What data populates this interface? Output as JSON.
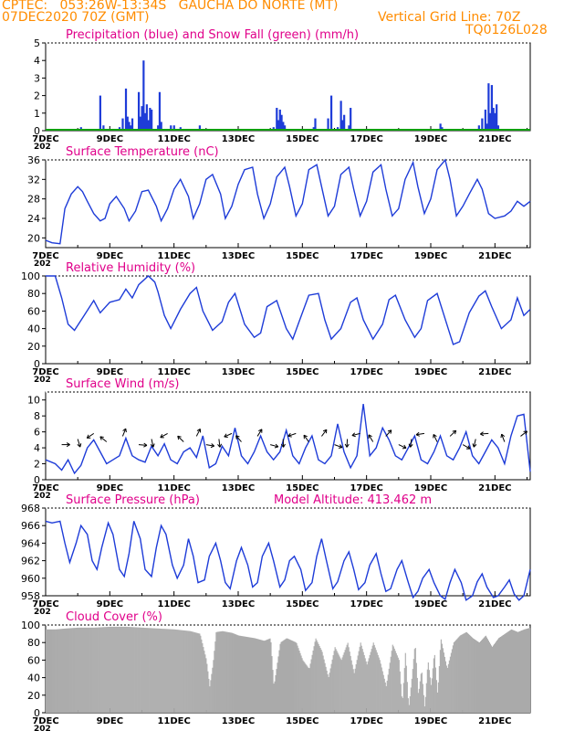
{
  "header": {
    "station": "CPTEC:   053:26W-13:34S   GAUCHA DO NORTE (MT)",
    "run": "07DEC2020 70Z (GMT)",
    "grid_note": "Vertical Grid Line: 70Z",
    "code": "TQ0126L028"
  },
  "colors": {
    "header": "#ff8c00",
    "titles": "#e0008a",
    "line": "#1e3cd8",
    "snow": "#10a010",
    "cloud": "#aaaaaa",
    "axis": "#000000"
  },
  "x_axis": {
    "tick_labels": [
      "7DEC",
      "9DEC",
      "11DEC",
      "13DEC",
      "15DEC",
      "17DEC",
      "19DEC",
      "21DEC"
    ],
    "year_stub": "202"
  },
  "chart_data": [
    {
      "type": "bar",
      "title": "Precipitation (blue) and Snow Fall (green) (mm/h)",
      "ylim": [
        0,
        5
      ],
      "yticks": [
        "0",
        "1",
        "2",
        "3",
        "4",
        "5"
      ],
      "x_unit": "days since 7DEC 00Z",
      "series": [
        {
          "name": "Precipitation",
          "color": "#1e3cd8",
          "x": [
            0.2,
            0.4,
            0.6,
            1.1,
            1.3,
            1.55,
            1.7,
            1.8,
            1.9,
            2.0,
            2.3,
            2.4,
            2.5,
            2.55,
            2.6,
            2.65,
            2.7,
            2.9,
            2.95,
            3.0,
            3.05,
            3.1,
            3.15,
            3.2,
            3.25,
            3.3,
            3.5,
            3.55,
            3.6,
            3.9,
            3.95,
            4.0,
            4.05,
            4.2,
            4.6,
            4.8,
            5.1,
            5.5,
            5.9,
            6.2,
            6.4,
            6.7,
            7.1,
            7.2,
            7.25,
            7.3,
            7.35,
            7.4,
            7.45,
            7.5,
            8.3,
            8.35,
            8.4,
            8.5,
            8.8,
            8.85,
            8.9,
            9.1,
            9.2,
            9.25,
            9.3,
            9.45,
            9.5,
            9.6,
            10.3,
            10.5,
            10.6,
            12.3,
            12.35,
            12.4,
            12.7,
            13.5,
            13.6,
            13.7,
            13.75,
            13.8,
            13.85,
            13.9,
            13.95,
            14.0,
            14.05,
            14.1
          ],
          "y": [
            0.1,
            0.05,
            0.1,
            0.2,
            0.1,
            0.1,
            2.0,
            0.3,
            0.1,
            0.05,
            0.2,
            0.7,
            2.4,
            0.8,
            0.5,
            0.3,
            0.7,
            2.2,
            0.8,
            1.4,
            4.0,
            1.0,
            1.5,
            0.6,
            1.3,
            1.2,
            0.3,
            2.2,
            0.5,
            0.3,
            0.1,
            0.3,
            0.1,
            0.2,
            0.1,
            0.3,
            0.1,
            0.1,
            0.1,
            0.05,
            0.1,
            0.1,
            0.2,
            1.3,
            0.6,
            1.2,
            0.9,
            0.5,
            0.3,
            0.1,
            0.1,
            0.2,
            0.7,
            0.05,
            0.7,
            0.1,
            2.0,
            0.2,
            1.7,
            0.6,
            0.9,
            0.3,
            1.3,
            0.1,
            0.1,
            0.1,
            0.1,
            0.4,
            0.2,
            0.1,
            0.1,
            0.3,
            0.7,
            1.2,
            0.4,
            2.7,
            1.0,
            2.6,
            1.3,
            1.0,
            1.5,
            0.3
          ]
        },
        {
          "name": "Snow Fall",
          "color": "#10a010",
          "x": [],
          "y": []
        }
      ]
    },
    {
      "type": "line",
      "title": "Surface Temperature (nC)",
      "ylim": [
        18,
        36
      ],
      "yticks": [
        "20",
        "24",
        "28",
        "32",
        "36"
      ],
      "x_unit": "days since 7DEC 00Z",
      "x": [
        0,
        0.2,
        0.45,
        0.6,
        0.8,
        1.0,
        1.15,
        1.3,
        1.5,
        1.7,
        1.85,
        2.0,
        2.2,
        2.45,
        2.6,
        2.8,
        3.0,
        3.2,
        3.45,
        3.6,
        3.8,
        4.0,
        4.2,
        4.45,
        4.6,
        4.8,
        5.0,
        5.2,
        5.45,
        5.6,
        5.8,
        6.0,
        6.2,
        6.45,
        6.6,
        6.8,
        7.0,
        7.2,
        7.45,
        7.6,
        7.8,
        8.0,
        8.2,
        8.45,
        8.6,
        8.8,
        9.0,
        9.2,
        9.45,
        9.6,
        9.8,
        10.0,
        10.2,
        10.45,
        10.6,
        10.8,
        11.0,
        11.2,
        11.45,
        11.6,
        11.8,
        12.0,
        12.2,
        12.45,
        12.6,
        12.8,
        13.0,
        13.2,
        13.45,
        13.6,
        13.8,
        14.0,
        14.3,
        14.5,
        14.7,
        14.9,
        15.1
      ],
      "y": [
        19.5,
        19.0,
        18.8,
        26,
        29,
        30.5,
        29.5,
        27.5,
        25,
        23.5,
        24,
        27,
        28.5,
        26,
        23.5,
        25.5,
        29.5,
        29.8,
        26.5,
        23.5,
        26,
        30,
        32,
        28.5,
        24,
        27,
        32,
        33,
        29,
        24,
        26.5,
        31,
        34,
        34.5,
        29,
        24,
        27,
        32.5,
        34.5,
        30.5,
        24.5,
        27,
        34,
        35,
        30.5,
        24.5,
        26.5,
        33,
        34.5,
        30,
        24.5,
        27.5,
        33.5,
        35,
        30,
        24.5,
        26,
        32,
        35.5,
        30.5,
        25,
        28,
        34,
        36,
        32,
        24.5,
        26.5,
        29,
        32,
        30,
        25,
        24,
        24.5,
        25.5,
        27.5,
        26.5,
        27.5
      ]
    },
    {
      "type": "line",
      "title": "Relative Humidity (%)",
      "ylim": [
        0,
        100
      ],
      "yticks": [
        "0",
        "20",
        "40",
        "60",
        "80",
        "100"
      ],
      "x_unit": "days since 7DEC 00Z",
      "x": [
        0,
        0.3,
        0.5,
        0.7,
        0.9,
        1.2,
        1.5,
        1.7,
        2.0,
        2.3,
        2.5,
        2.7,
        2.9,
        3.2,
        3.4,
        3.5,
        3.7,
        3.9,
        4.2,
        4.5,
        4.7,
        4.9,
        5.2,
        5.5,
        5.7,
        5.9,
        6.2,
        6.5,
        6.7,
        6.9,
        7.2,
        7.5,
        7.7,
        7.9,
        8.2,
        8.5,
        8.7,
        8.9,
        9.2,
        9.5,
        9.7,
        9.9,
        10.2,
        10.5,
        10.7,
        10.9,
        11.2,
        11.5,
        11.7,
        11.9,
        12.2,
        12.5,
        12.7,
        12.9,
        13.2,
        13.5,
        13.7,
        13.9,
        14.2,
        14.5,
        14.7,
        14.9,
        15.1
      ],
      "y": [
        100,
        100,
        75,
        45,
        38,
        55,
        72,
        58,
        70,
        73,
        85,
        75,
        90,
        100,
        93,
        82,
        55,
        40,
        62,
        80,
        87,
        60,
        38,
        48,
        70,
        80,
        45,
        30,
        35,
        65,
        72,
        40,
        28,
        48,
        78,
        80,
        50,
        28,
        40,
        70,
        75,
        50,
        28,
        45,
        73,
        78,
        50,
        30,
        40,
        72,
        80,
        45,
        22,
        25,
        58,
        77,
        83,
        65,
        40,
        50,
        75,
        55,
        62
      ]
    },
    {
      "type": "line",
      "title": "Surface Wind (m/s)",
      "ylim": [
        0,
        11
      ],
      "yticks": [
        "0",
        "2",
        "4",
        "6",
        "8",
        "10"
      ],
      "x_unit": "days since 7DEC 00Z",
      "x": [
        0,
        0.3,
        0.5,
        0.7,
        0.9,
        1.1,
        1.3,
        1.5,
        1.7,
        1.9,
        2.1,
        2.3,
        2.5,
        2.7,
        2.9,
        3.1,
        3.3,
        3.5,
        3.7,
        3.9,
        4.1,
        4.3,
        4.5,
        4.7,
        4.9,
        5.1,
        5.3,
        5.5,
        5.7,
        5.9,
        6.1,
        6.3,
        6.5,
        6.7,
        6.9,
        7.1,
        7.3,
        7.5,
        7.7,
        7.9,
        8.1,
        8.3,
        8.5,
        8.7,
        8.9,
        9.1,
        9.3,
        9.5,
        9.7,
        9.9,
        10.1,
        10.3,
        10.5,
        10.7,
        10.9,
        11.1,
        11.3,
        11.5,
        11.7,
        11.9,
        12.1,
        12.3,
        12.5,
        12.7,
        12.9,
        13.1,
        13.3,
        13.5,
        13.7,
        13.9,
        14.1,
        14.3,
        14.5,
        14.7,
        14.9,
        15.1
      ],
      "y": [
        2.5,
        2.0,
        1.2,
        2.5,
        0.8,
        1.8,
        4.0,
        5.0,
        3.5,
        2.0,
        2.5,
        3.0,
        5.2,
        3.0,
        2.5,
        2.2,
        4.2,
        3.0,
        4.5,
        2.5,
        2.0,
        3.5,
        4.0,
        2.8,
        5.5,
        1.5,
        2.0,
        4.2,
        3.0,
        6.5,
        3.0,
        2.0,
        3.5,
        5.5,
        3.5,
        2.5,
        3.5,
        6.2,
        3.0,
        2.0,
        4.0,
        5.5,
        2.5,
        2.0,
        3.0,
        7.0,
        3.5,
        1.5,
        3.0,
        9.5,
        3.0,
        4.0,
        6.5,
        5.0,
        3.0,
        2.5,
        4.0,
        5.5,
        2.5,
        2.0,
        3.5,
        5.5,
        3.0,
        2.5,
        4.0,
        6.0,
        3.0,
        2.0,
        3.5,
        5.0,
        4.0,
        2.0,
        5.5,
        8.0,
        8.2,
        1.0
      ],
      "arrows_x": [
        0.5,
        1.0,
        1.5,
        1.9,
        2.4,
        2.9,
        3.3,
        3.8,
        4.3,
        4.7,
        5.0,
        5.4,
        5.8,
        6.1,
        6.6,
        7.0,
        7.4,
        7.8,
        8.2,
        8.6,
        9.0,
        9.4,
        9.8,
        10.2,
        10.6,
        11.0,
        11.4,
        11.8,
        12.2,
        12.6,
        13.0,
        13.4,
        13.8,
        14.3,
        14.8
      ]
    },
    {
      "type": "line",
      "title": "Surface Pressure (hPa)",
      "annotation": "Model Altitude: 413.462 m",
      "ylim": [
        958,
        968
      ],
      "yticks": [
        "958",
        "960",
        "962",
        "964",
        "966",
        "968"
      ],
      "x_unit": "days since 7DEC 00Z",
      "x": [
        0,
        0.2,
        0.45,
        0.6,
        0.75,
        0.95,
        1.1,
        1.3,
        1.45,
        1.6,
        1.75,
        1.95,
        2.1,
        2.3,
        2.45,
        2.6,
        2.75,
        2.95,
        3.1,
        3.3,
        3.45,
        3.6,
        3.75,
        3.95,
        4.1,
        4.3,
        4.45,
        4.6,
        4.75,
        4.95,
        5.1,
        5.3,
        5.45,
        5.6,
        5.75,
        5.95,
        6.1,
        6.3,
        6.45,
        6.6,
        6.75,
        6.95,
        7.1,
        7.3,
        7.45,
        7.6,
        7.75,
        7.95,
        8.1,
        8.3,
        8.45,
        8.6,
        8.75,
        8.95,
        9.1,
        9.3,
        9.45,
        9.6,
        9.75,
        9.95,
        10.1,
        10.3,
        10.45,
        10.6,
        10.75,
        10.95,
        11.1,
        11.3,
        11.45,
        11.6,
        11.75,
        11.95,
        12.1,
        12.3,
        12.45,
        12.6,
        12.75,
        12.95,
        13.1,
        13.3,
        13.45,
        13.6,
        13.75,
        13.95,
        14.1,
        14.3,
        14.45,
        14.6,
        14.75,
        14.9,
        15.1
      ],
      "y": [
        966.5,
        966.3,
        966.5,
        964.0,
        961.8,
        964.0,
        966.0,
        965.0,
        962.0,
        961.0,
        963.5,
        966.3,
        965.0,
        961.0,
        960.2,
        962.8,
        966.5,
        964.5,
        961.0,
        960.2,
        963.5,
        966.0,
        965.0,
        961.5,
        960.0,
        961.5,
        964.5,
        962.5,
        959.5,
        959.8,
        962.5,
        964.0,
        962.0,
        959.5,
        958.8,
        962.0,
        963.5,
        961.5,
        959.0,
        959.5,
        962.5,
        964.0,
        962.0,
        959.0,
        959.8,
        962.0,
        962.5,
        961.0,
        958.6,
        959.5,
        962.5,
        964.5,
        962.0,
        958.8,
        959.6,
        962.0,
        963.0,
        961.0,
        958.7,
        959.5,
        961.5,
        962.8,
        960.5,
        958.5,
        958.8,
        961.0,
        962.0,
        959.5,
        957.8,
        958.5,
        960.0,
        961.0,
        959.5,
        958.0,
        957.6,
        959.5,
        961.0,
        959.5,
        957.5,
        958.0,
        959.6,
        960.5,
        959.0,
        957.8,
        958.0,
        959.0,
        959.8,
        958.2,
        957.5,
        958.0,
        961.0
      ]
    },
    {
      "type": "area",
      "title": "Cloud Cover (%)",
      "ylim": [
        0,
        100
      ],
      "yticks": [
        "0",
        "20",
        "40",
        "60",
        "80",
        "100"
      ],
      "x_unit": "days since 7DEC 00Z",
      "x": [
        0,
        0.3,
        0.6,
        1.0,
        1.5,
        2.0,
        2.5,
        3.0,
        3.5,
        4.0,
        4.5,
        4.8,
        5.0,
        5.1,
        5.2,
        5.3,
        5.5,
        5.8,
        6.0,
        6.5,
        6.8,
        7.0,
        7.1,
        7.3,
        7.5,
        7.8,
        8.0,
        8.2,
        8.4,
        8.6,
        8.8,
        9.0,
        9.2,
        9.4,
        9.6,
        9.8,
        10.0,
        10.2,
        10.4,
        10.6,
        10.8,
        11.0,
        11.1,
        11.2,
        11.3,
        11.4,
        11.5,
        11.6,
        11.7,
        11.8,
        11.9,
        12.0,
        12.1,
        12.2,
        12.3,
        12.5,
        12.7,
        12.9,
        13.1,
        13.3,
        13.5,
        13.7,
        13.9,
        14.1,
        14.3,
        14.5,
        14.7,
        14.9,
        15.1
      ],
      "y": [
        95,
        95,
        96,
        97,
        97,
        98,
        98,
        97,
        96,
        95,
        93,
        90,
        60,
        30,
        55,
        92,
        93,
        91,
        88,
        85,
        82,
        85,
        30,
        80,
        85,
        80,
        60,
        50,
        85,
        70,
        40,
        75,
        60,
        80,
        45,
        80,
        55,
        80,
        60,
        30,
        78,
        60,
        10,
        70,
        5,
        40,
        80,
        20,
        50,
        5,
        60,
        30,
        70,
        20,
        85,
        50,
        80,
        88,
        92,
        85,
        80,
        88,
        75,
        85,
        90,
        95,
        92,
        95,
        97
      ]
    }
  ]
}
